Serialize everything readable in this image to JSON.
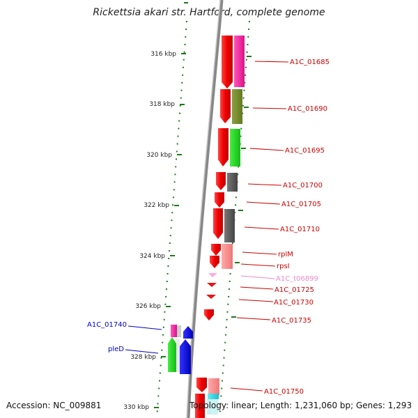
{
  "title": "Rickettsia akari str. Hartford, complete genome",
  "footer": {
    "accession": "Accession: NC_009881",
    "summary": "Topology: linear; Length: 1,231,060 bp; Genes: 1,293"
  },
  "colors": {
    "backbone": "#777777",
    "ticks": "#1a7a1a",
    "forward_genes": "#ee1111",
    "label_red": "#cc0000",
    "label_blue": "#0000cc",
    "label_pink": "#ee88cc"
  },
  "ruler": [
    {
      "label": "316 kbp"
    },
    {
      "label": "318 kbp"
    },
    {
      "label": "320 kbp"
    },
    {
      "label": "322 kbp"
    },
    {
      "label": "324 kbp"
    },
    {
      "label": "326 kbp"
    },
    {
      "label": "328 kbp"
    },
    {
      "label": "330 kbp"
    }
  ],
  "gene_labels": [
    {
      "text": "A1C_01685",
      "color": "#cc0000"
    },
    {
      "text": "A1C_01690",
      "color": "#cc0000"
    },
    {
      "text": "A1C_01695",
      "color": "#cc0000"
    },
    {
      "text": "A1C_01700",
      "color": "#cc0000"
    },
    {
      "text": "A1C_01705",
      "color": "#cc0000"
    },
    {
      "text": "A1C_01710",
      "color": "#cc0000"
    },
    {
      "text": "rplM",
      "color": "#cc0000"
    },
    {
      "text": "rpsI",
      "color": "#cc0000"
    },
    {
      "text": "A1C_t06899",
      "color": "#ee88cc"
    },
    {
      "text": "A1C_01725",
      "color": "#cc0000"
    },
    {
      "text": "A1C_01730",
      "color": "#cc0000"
    },
    {
      "text": "A1C_01735",
      "color": "#cc0000"
    },
    {
      "text": "A1C_01740",
      "color": "#0000cc"
    },
    {
      "text": "pleD",
      "color": "#0000cc"
    },
    {
      "text": "A1C_01750",
      "color": "#cc0000"
    }
  ]
}
